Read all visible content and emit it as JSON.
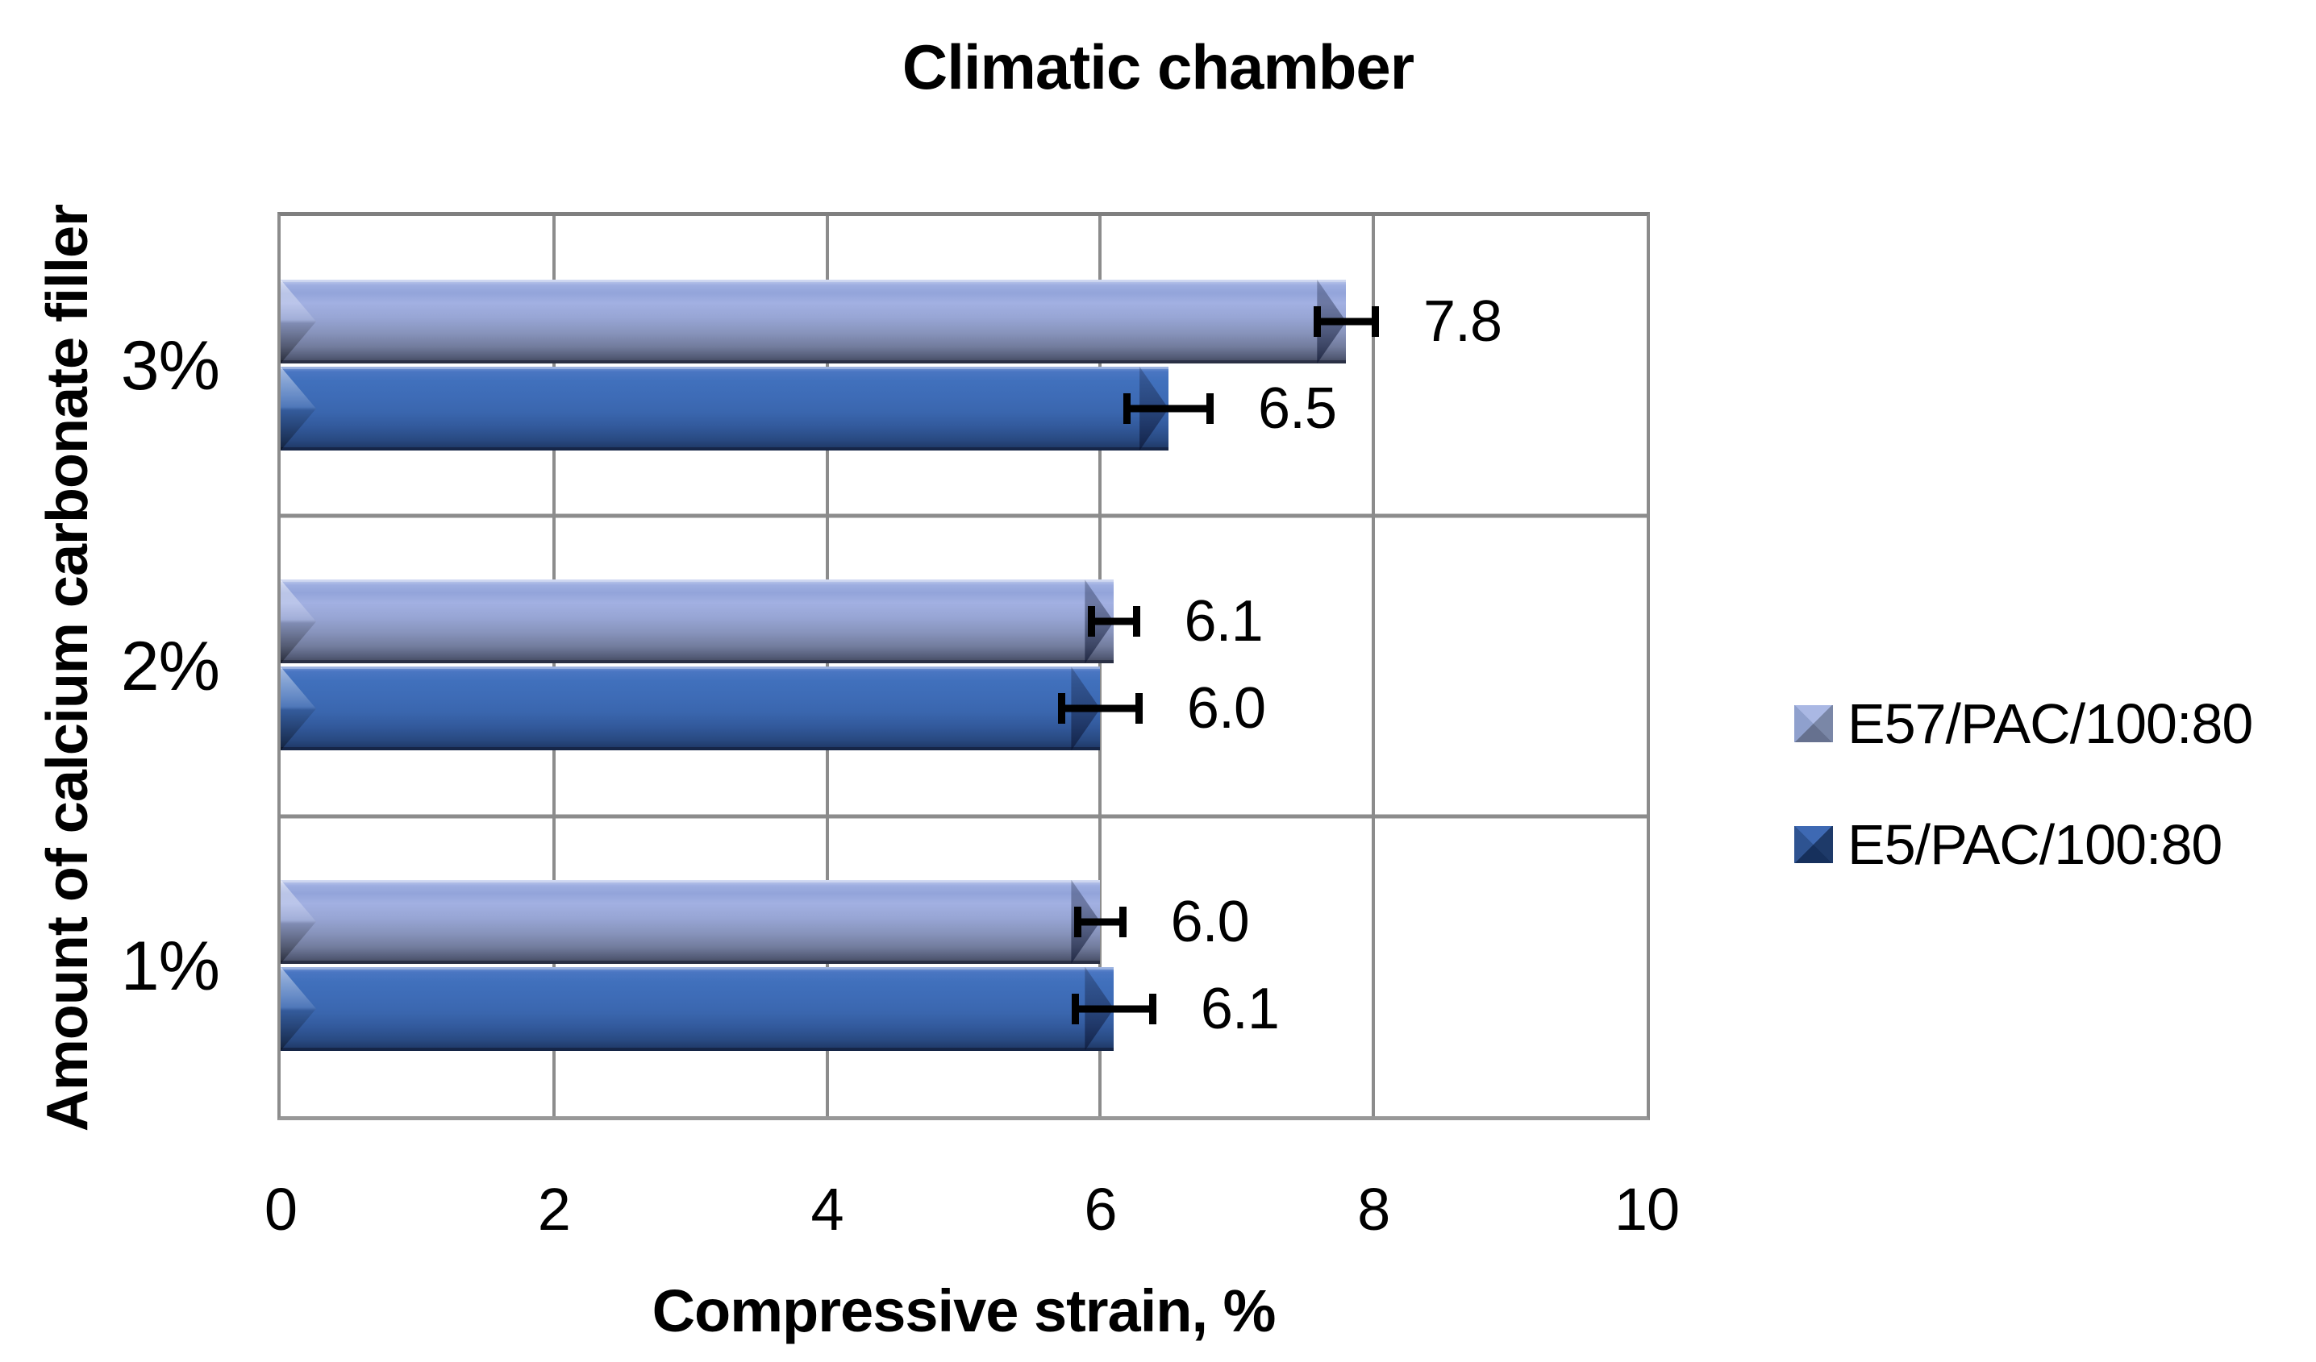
{
  "chart_data": {
    "type": "bar",
    "orientation": "horizontal",
    "title": "Climatic chamber",
    "xlabel": "Compressive strain, %",
    "ylabel": "Amount of calcium carbonate filler",
    "categories": [
      "3%",
      "2%",
      "1%"
    ],
    "series": [
      {
        "name": "E57/PAC/100:80",
        "values": [
          7.8,
          6.1,
          6.0
        ],
        "labels": [
          "7.8",
          "6.1",
          "6.0"
        ],
        "errors": [
          0.24,
          0.19,
          0.19
        ]
      },
      {
        "name": "E5/PAC/100:80",
        "values": [
          6.5,
          6.0,
          6.1
        ],
        "labels": [
          "6.5",
          "6.0",
          "6.1"
        ],
        "errors": [
          0.33,
          0.31,
          0.31
        ]
      }
    ],
    "xlim": [
      0,
      10
    ],
    "xticks": [
      0,
      2,
      4,
      6,
      8,
      10
    ],
    "grid": "vertical gridlines every 2 units, horizontal band dividers between categories",
    "legend_position": "right",
    "error_bars": "black, horizontal, with end caps",
    "value_label_position": "right of error bar"
  },
  "colors": {
    "series1_gradient": "linear-gradient(180deg,#c2cdee 0%,#9dade0 7%,#93a4da 16%,#a2b0e2 28%,#97a5d4 46%,#8793bb 64%,#727c9d 80%,#555d79 92%,#3f4559 100%)",
    "series2_gradient": "linear-gradient(180deg,#7b9ad8 0%,#4a76c2 6%,#4070bc 18%,#3e6cb7 35%,#3a66ae 55%,#32599b 72%,#294a82 87%,#1d3560 100%)",
    "series1_base": "#93a5da",
    "series2_base": "#3a67b1",
    "swatch1_faces": {
      "top": "#aab8e4",
      "right": "#7a87a7",
      "bottom": "#66718f",
      "left": "#8fa0cd"
    },
    "swatch2_faces": {
      "top": "#3e69b3",
      "right": "#1e3a69",
      "bottom": "#16305c",
      "left": "#2e5391"
    },
    "gridline": "#8c8c8c",
    "border": "#7f7f7f",
    "text": "#000000",
    "background": "#ffffff"
  }
}
